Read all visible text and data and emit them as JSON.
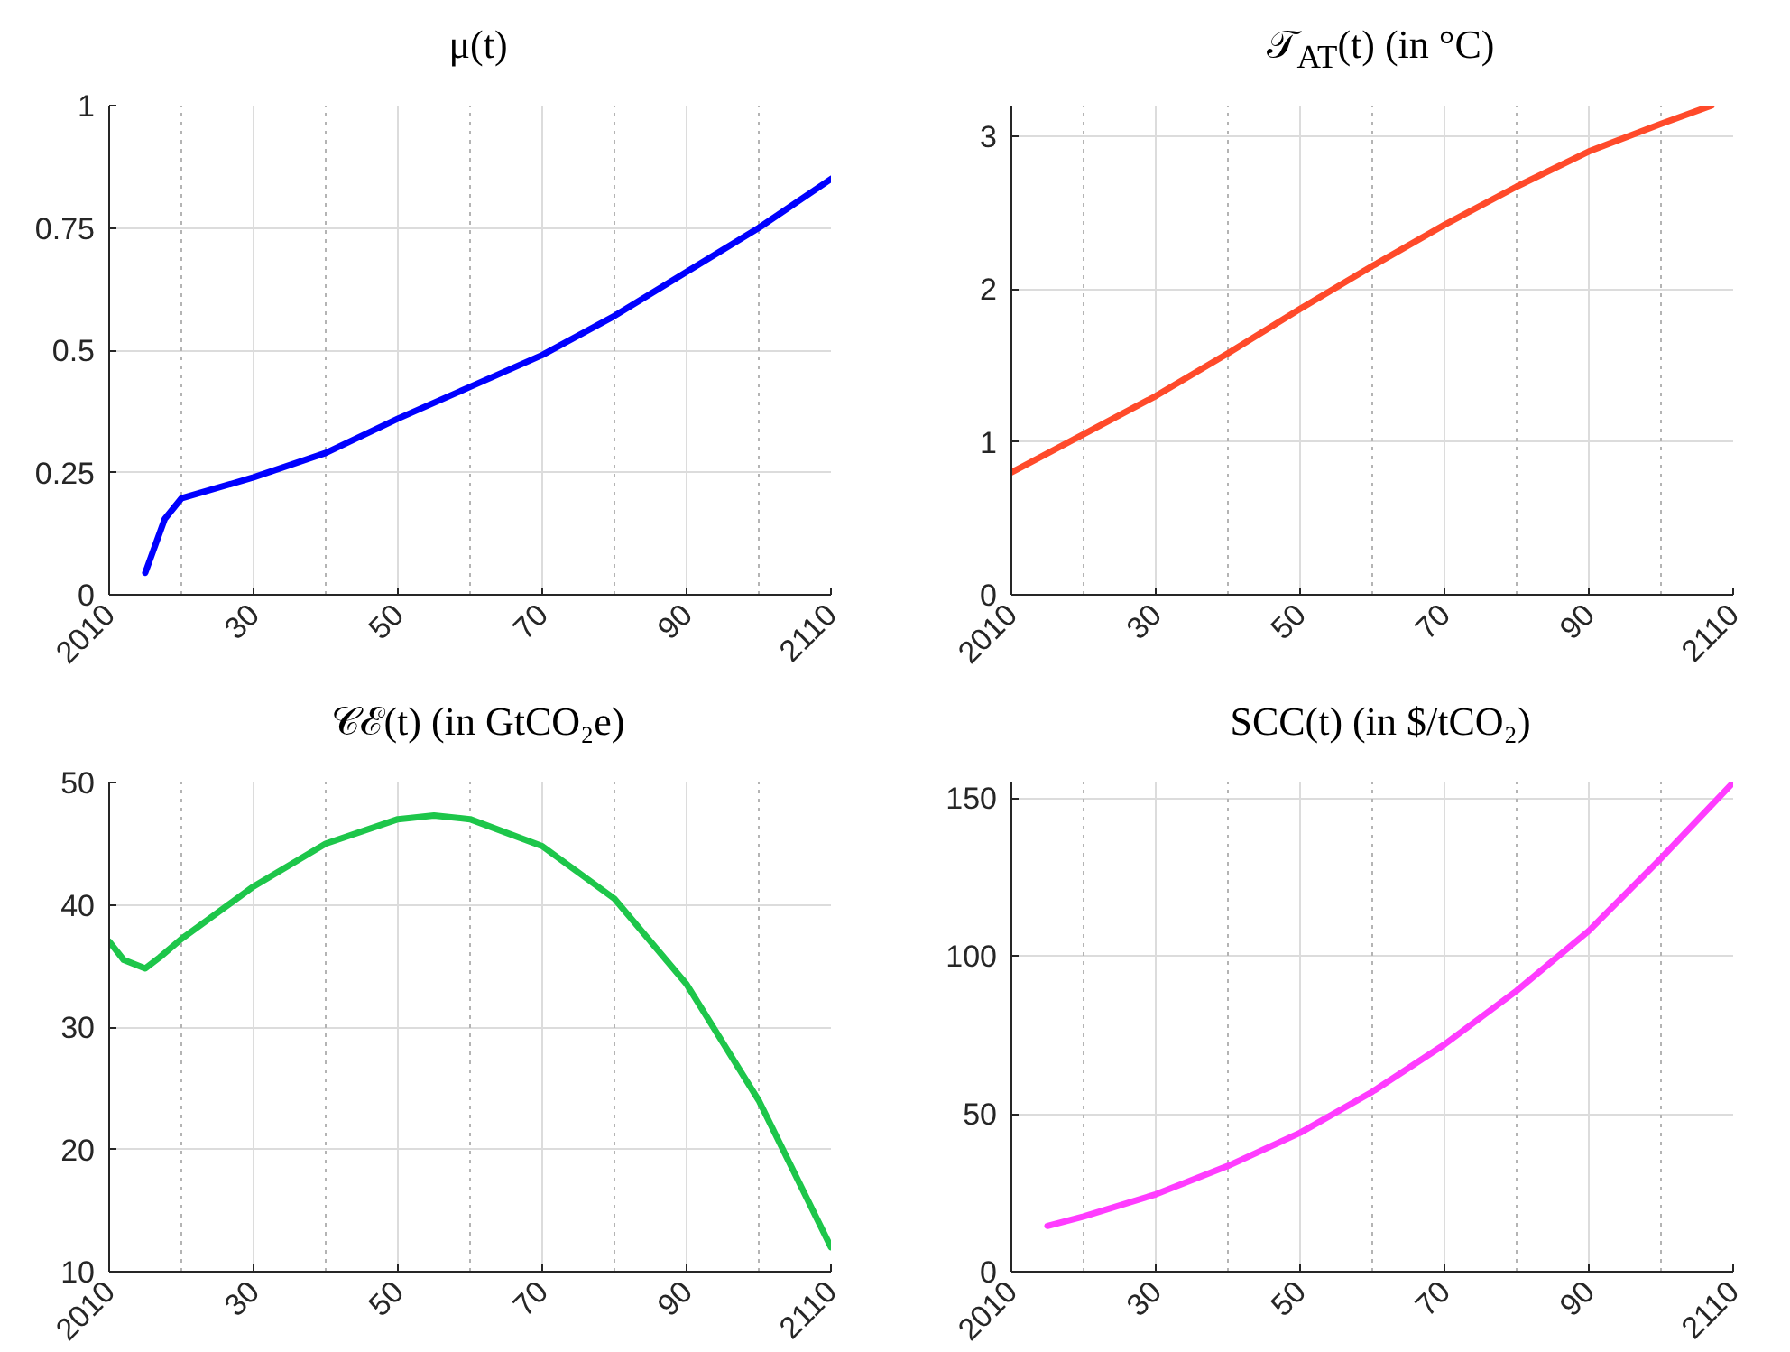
{
  "chart_data": [
    {
      "type": "line",
      "title": "μ(t)",
      "x": [
        2015,
        2017.7,
        2020,
        2030,
        2040,
        2050,
        2060,
        2070,
        2080,
        2090,
        2100,
        2110
      ],
      "series": [
        {
          "color": "#0000ff",
          "values": [
            0.045,
            0.155,
            0.197,
            0.24,
            0.29,
            0.36,
            0.425,
            0.49,
            0.57,
            0.66,
            0.75,
            0.85
          ]
        }
      ],
      "xlim": [
        2010,
        2110
      ],
      "xticks": [
        2010,
        {
          "value": 2020,
          "label": null
        },
        {
          "value": 2030,
          "label": "30"
        },
        {
          "value": 2040,
          "label": null
        },
        {
          "value": 2050,
          "label": "50"
        },
        {
          "value": 2060,
          "label": null
        },
        {
          "value": 2070,
          "label": "70"
        },
        {
          "value": 2080,
          "label": null
        },
        {
          "value": 2090,
          "label": "90"
        },
        {
          "value": 2100,
          "label": null
        },
        2110
      ],
      "ylim": [
        0,
        1
      ],
      "yticks": [
        0,
        0.25,
        0.5,
        0.75,
        1
      ],
      "grid": true,
      "line_style": "solid",
      "marker": "none"
    },
    {
      "type": "line",
      "title": "𝒯$_{AT}$(t) (in °C)",
      "x": [
        2010,
        2020,
        2030,
        2040,
        2050,
        2060,
        2070,
        2080,
        2090,
        2100,
        2107
      ],
      "series": [
        {
          "color": "#ff4a2a",
          "values": [
            0.8,
            1.05,
            1.3,
            1.58,
            1.87,
            2.15,
            2.42,
            2.67,
            2.9,
            3.08,
            3.2
          ]
        }
      ],
      "xlim": [
        2010,
        2110
      ],
      "xticks": [
        2010,
        {
          "value": 2020,
          "label": null
        },
        {
          "value": 2030,
          "label": "30"
        },
        {
          "value": 2040,
          "label": null
        },
        {
          "value": 2050,
          "label": "50"
        },
        {
          "value": 2060,
          "label": null
        },
        {
          "value": 2070,
          "label": "70"
        },
        {
          "value": 2080,
          "label": null
        },
        {
          "value": 2090,
          "label": "90"
        },
        {
          "value": 2100,
          "label": null
        },
        2110
      ],
      "ylim": [
        0,
        3.2
      ],
      "yticks": [
        0,
        1,
        2,
        3
      ],
      "grid": true,
      "line_style": "solid",
      "marker": "none"
    },
    {
      "type": "line",
      "title": "𝒞ℰ(t) (in GtCO₂e)",
      "x": [
        2010,
        2012,
        2015,
        2017,
        2020,
        2030,
        2040,
        2050,
        2055,
        2060,
        2070,
        2080,
        2090,
        2100,
        2110
      ],
      "series": [
        {
          "color": "#1dc64a",
          "values": [
            37,
            35.5,
            34.8,
            35.7,
            37.2,
            41.5,
            45,
            47,
            47.3,
            47,
            44.8,
            40.5,
            33.5,
            24,
            12
          ]
        }
      ],
      "xlim": [
        2010,
        2110
      ],
      "xticks": [
        2010,
        {
          "value": 2020,
          "label": null
        },
        {
          "value": 2030,
          "label": "30"
        },
        {
          "value": 2040,
          "label": null
        },
        {
          "value": 2050,
          "label": "50"
        },
        {
          "value": 2060,
          "label": null
        },
        {
          "value": 2070,
          "label": "70"
        },
        {
          "value": 2080,
          "label": null
        },
        {
          "value": 2090,
          "label": "90"
        },
        {
          "value": 2100,
          "label": null
        },
        2110
      ],
      "ylim": [
        10,
        50
      ],
      "yticks": [
        10,
        20,
        30,
        40,
        50
      ],
      "grid": true,
      "line_style": "solid",
      "marker": "none"
    },
    {
      "type": "line",
      "title": "SCC(t) (in $/tCO₂)",
      "x": [
        2015,
        2020,
        2030,
        2040,
        2050,
        2060,
        2070,
        2080,
        2090,
        2100,
        2110
      ],
      "series": [
        {
          "color": "#ff3cff",
          "values": [
            14.5,
            17.5,
            24.5,
            33.5,
            44,
            57,
            72,
            89,
            108,
            131,
            155
          ]
        }
      ],
      "xlim": [
        2010,
        2110
      ],
      "xticks": [
        2010,
        {
          "value": 2020,
          "label": null
        },
        {
          "value": 2030,
          "label": "30"
        },
        {
          "value": 2040,
          "label": null
        },
        {
          "value": 2050,
          "label": "50"
        },
        {
          "value": 2060,
          "label": null
        },
        {
          "value": 2070,
          "label": "70"
        },
        {
          "value": 2080,
          "label": null
        },
        {
          "value": 2090,
          "label": "90"
        },
        {
          "value": 2100,
          "label": null
        },
        2110
      ],
      "ylim": [
        0,
        155
      ],
      "yticks": [
        0,
        50,
        100,
        150
      ],
      "grid": true,
      "line_style": "solid",
      "marker": "none"
    }
  ]
}
